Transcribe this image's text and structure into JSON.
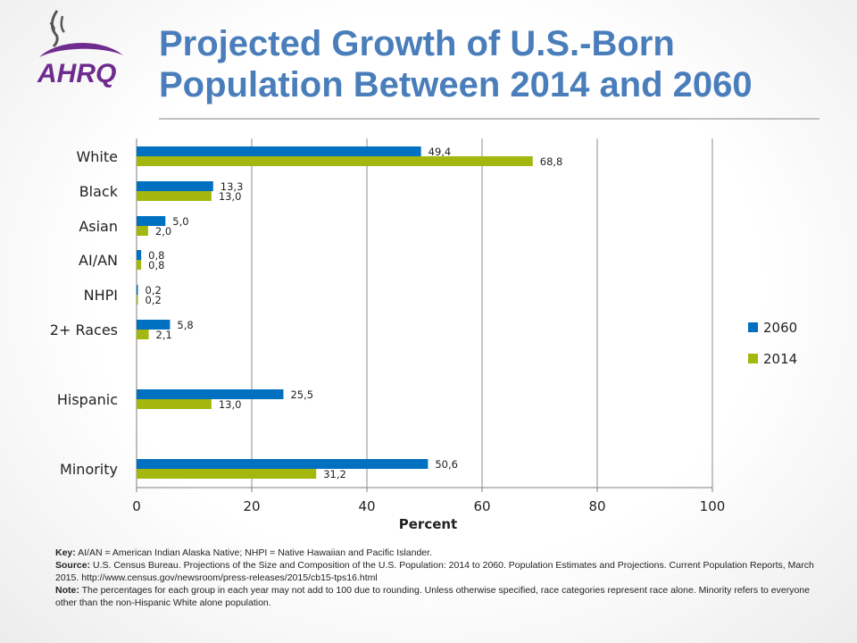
{
  "header": {
    "logo_text": "AHRQ",
    "title_line1": "Projected Growth of U.S.-Born",
    "title_line2": "Population Between 2014 and 2060"
  },
  "colors": {
    "title": "#4a7ebb",
    "series_2060": "#0070c0",
    "series_2014": "#a4b70f",
    "logo_purple": "#6f2c8f"
  },
  "chart_data": {
    "type": "bar",
    "orientation": "horizontal",
    "categories": [
      "White",
      "Black",
      "Asian",
      "AI/AN",
      "NHPI",
      "2+ Races",
      "Hispanic",
      "Minority"
    ],
    "series": [
      {
        "name": "2060",
        "values": [
          49.4,
          13.3,
          5.0,
          0.8,
          0.2,
          5.8,
          25.5,
          50.6
        ],
        "labels": [
          "49,4",
          "13,3",
          "5,0",
          "0,8",
          "0,2",
          "5,8",
          "25,5",
          "50,6"
        ]
      },
      {
        "name": "2014",
        "values": [
          68.8,
          13.0,
          2.0,
          0.8,
          0.2,
          2.1,
          13.0,
          31.2
        ],
        "labels": [
          "68,8",
          "13,0",
          "2,0",
          "0,8",
          "0,2",
          "2,1",
          "13,0",
          "31,2"
        ]
      }
    ],
    "xlabel": "Percent",
    "xlim": [
      0,
      100
    ],
    "xticks": [
      0,
      20,
      40,
      60,
      80,
      100
    ],
    "xtick_labels": [
      "0",
      "20",
      "40",
      "60",
      "80",
      "100"
    ],
    "grid": "vertical",
    "legend_position": "right"
  },
  "footnotes": {
    "key_label": "Key:",
    "key_text": "AI/AN = American Indian Alaska Native; NHPI = Native Hawaiian and Pacific Islander.",
    "source_label": "Source:",
    "source_text": "U.S. Census Bureau. Projections of the Size and Composition of the U.S. Population: 2014 to 2060. Population Estimates and Projections. Current Population Reports, March 2015. http://www.census.gov/newsroom/press-releases/2015/cb15-tps16.html",
    "note_label": "Note:",
    "note_text": "The percentages for each group in each year may not add to 100 due to rounding. Unless otherwise specified, race categories represent race alone. Minority refers to everyone other than the non-Hispanic White alone population."
  }
}
